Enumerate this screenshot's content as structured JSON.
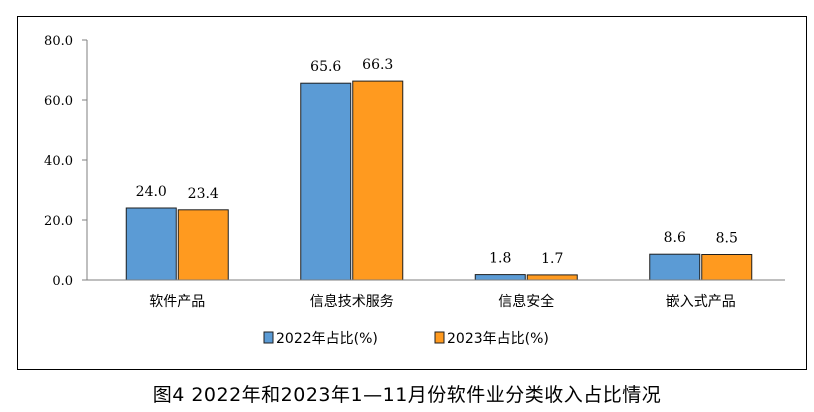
{
  "caption": "图4   2022年和2023年1—11月份软件业分类收入占比情况",
  "colors": {
    "series_2022": "#5B9BD5",
    "series_2023": "#FF9A1F",
    "border": "#1f1f1f"
  },
  "chart_data": {
    "type": "bar",
    "title": "",
    "xlabel": "",
    "ylabel": "",
    "categories": [
      "软件产品",
      "信息技术服务",
      "信息安全",
      "嵌入式产品"
    ],
    "series": [
      {
        "name": "2022年占比(%)",
        "values": [
          24.0,
          65.6,
          1.8,
          8.6
        ],
        "labels": [
          "24.0",
          "65.6",
          "1.8",
          "8.6"
        ]
      },
      {
        "name": "2023年占比(%)",
        "values": [
          23.4,
          66.3,
          1.7,
          8.5
        ],
        "labels": [
          "23.4",
          "66.3",
          "1.7",
          "8.5"
        ]
      }
    ],
    "ylim": [
      0,
      80
    ],
    "yticks": [
      0,
      20,
      40,
      60,
      80
    ],
    "ytick_labels": [
      "0.0",
      "20.0",
      "40.0",
      "60.0",
      "80.0"
    ],
    "grid": false,
    "legend_position": "bottom-center"
  }
}
